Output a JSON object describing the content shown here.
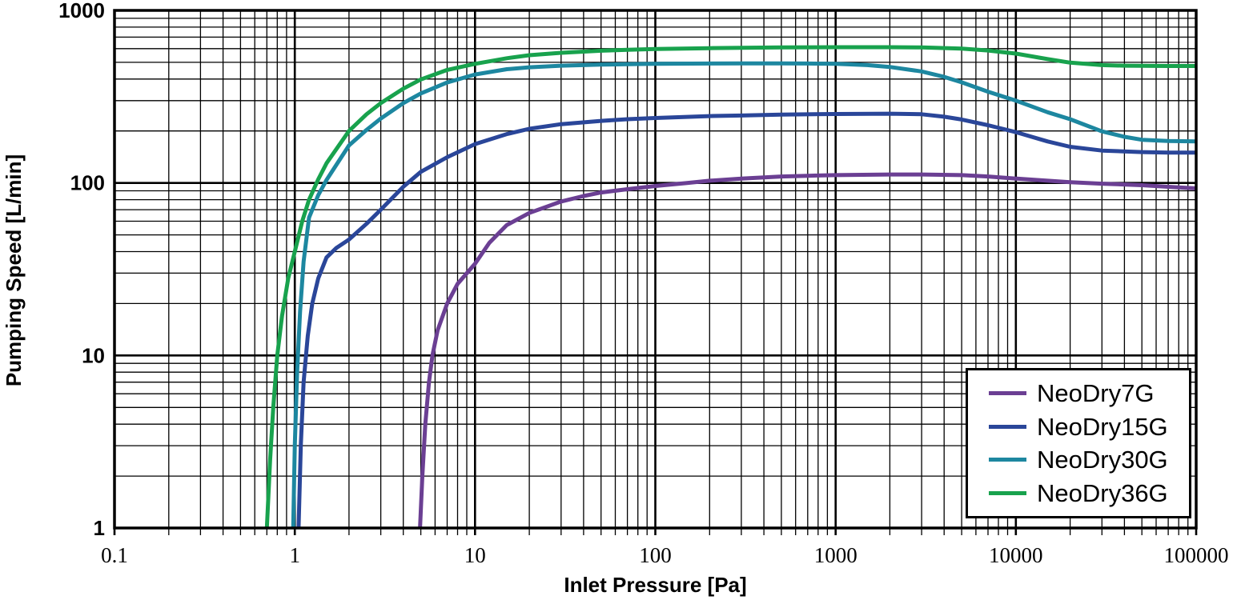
{
  "chart_data": {
    "type": "line",
    "title": "",
    "xlabel": "Inlet Pressure [Pa]",
    "ylabel": "Pumping Speed [L/min]",
    "x_scale": "log",
    "y_scale": "log",
    "xlim": [
      0.1,
      100000
    ],
    "ylim": [
      1,
      1000
    ],
    "x_ticks": [
      0.1,
      1,
      10,
      100,
      1000,
      10000,
      100000
    ],
    "x_tick_labels": [
      "0.1",
      "1",
      "10",
      "100",
      "1000",
      "10000",
      "100000"
    ],
    "y_ticks": [
      1,
      10,
      100,
      1000
    ],
    "y_tick_labels": [
      "1",
      "10",
      "100",
      "1000"
    ],
    "grid": "major+minor log-log, black lines on white",
    "legend_position": "lower-right",
    "axis_color": "#000000",
    "background_color": "#ffffff",
    "series": [
      {
        "name": "NeoDry7G",
        "color": "#6b3f93",
        "points": [
          [
            4.95,
            1
          ],
          [
            5.1,
            2
          ],
          [
            5.3,
            4
          ],
          [
            5.55,
            7
          ],
          [
            5.8,
            10
          ],
          [
            6.2,
            14
          ],
          [
            7,
            20
          ],
          [
            8,
            26
          ],
          [
            10,
            34
          ],
          [
            12,
            45
          ],
          [
            15,
            57
          ],
          [
            20,
            67
          ],
          [
            30,
            78
          ],
          [
            40,
            84
          ],
          [
            50,
            88
          ],
          [
            70,
            92
          ],
          [
            100,
            96
          ],
          [
            150,
            100
          ],
          [
            200,
            103
          ],
          [
            300,
            106
          ],
          [
            500,
            109
          ],
          [
            700,
            110
          ],
          [
            1000,
            111
          ],
          [
            2000,
            112
          ],
          [
            3000,
            112
          ],
          [
            5000,
            111
          ],
          [
            7000,
            109
          ],
          [
            10000,
            106
          ],
          [
            15000,
            103
          ],
          [
            20000,
            101
          ],
          [
            30000,
            99
          ],
          [
            50000,
            97
          ],
          [
            70000,
            95
          ],
          [
            100000,
            93
          ]
        ]
      },
      {
        "name": "NeoDry15G",
        "color": "#2a4699",
        "points": [
          [
            1.05,
            1
          ],
          [
            1.08,
            3
          ],
          [
            1.12,
            7
          ],
          [
            1.18,
            13
          ],
          [
            1.25,
            20
          ],
          [
            1.35,
            28
          ],
          [
            1.5,
            37
          ],
          [
            1.7,
            42
          ],
          [
            2,
            47
          ],
          [
            2.5,
            58
          ],
          [
            3,
            70
          ],
          [
            4,
            95
          ],
          [
            5,
            116
          ],
          [
            7,
            141
          ],
          [
            10,
            168
          ],
          [
            15,
            192
          ],
          [
            20,
            206
          ],
          [
            30,
            219
          ],
          [
            50,
            229
          ],
          [
            70,
            234
          ],
          [
            100,
            238
          ],
          [
            200,
            244
          ],
          [
            300,
            246
          ],
          [
            500,
            249
          ],
          [
            1000,
            251
          ],
          [
            2000,
            252
          ],
          [
            3000,
            250
          ],
          [
            4000,
            242
          ],
          [
            5000,
            233
          ],
          [
            7000,
            216
          ],
          [
            10000,
            197
          ],
          [
            15000,
            174
          ],
          [
            20000,
            162
          ],
          [
            30000,
            154
          ],
          [
            50000,
            151
          ],
          [
            70000,
            150
          ],
          [
            100000,
            150
          ]
        ]
      },
      {
        "name": "NeoDry30G",
        "color": "#1d87a0",
        "points": [
          [
            0.98,
            1
          ],
          [
            1.0,
            3
          ],
          [
            1.03,
            8
          ],
          [
            1.07,
            18
          ],
          [
            1.12,
            35
          ],
          [
            1.2,
            63
          ],
          [
            1.35,
            85
          ],
          [
            1.5,
            104
          ],
          [
            2,
            165
          ],
          [
            2.5,
            203
          ],
          [
            3,
            236
          ],
          [
            4,
            290
          ],
          [
            5,
            330
          ],
          [
            7,
            382
          ],
          [
            10,
            425
          ],
          [
            15,
            456
          ],
          [
            20,
            468
          ],
          [
            30,
            478
          ],
          [
            50,
            485
          ],
          [
            70,
            488
          ],
          [
            100,
            490
          ],
          [
            200,
            492
          ],
          [
            300,
            493
          ],
          [
            500,
            493
          ],
          [
            700,
            492
          ],
          [
            1000,
            490
          ],
          [
            1500,
            482
          ],
          [
            2000,
            470
          ],
          [
            3000,
            443
          ],
          [
            4000,
            412
          ],
          [
            5000,
            383
          ],
          [
            7000,
            338
          ],
          [
            10000,
            300
          ],
          [
            15000,
            257
          ],
          [
            20000,
            234
          ],
          [
            30000,
            199
          ],
          [
            40000,
            185
          ],
          [
            50000,
            178
          ],
          [
            70000,
            175
          ],
          [
            100000,
            174
          ]
        ]
      },
      {
        "name": "NeoDry36G",
        "color": "#18a24d",
        "points": [
          [
            0.7,
            1
          ],
          [
            0.73,
            2.5
          ],
          [
            0.76,
            5
          ],
          [
            0.8,
            10
          ],
          [
            0.85,
            17
          ],
          [
            0.92,
            28
          ],
          [
            1.0,
            40
          ],
          [
            1.1,
            60
          ],
          [
            1.2,
            80
          ],
          [
            1.35,
            105
          ],
          [
            1.5,
            130
          ],
          [
            2,
            200
          ],
          [
            2.5,
            250
          ],
          [
            3,
            290
          ],
          [
            4,
            352
          ],
          [
            5,
            398
          ],
          [
            7,
            452
          ],
          [
            10,
            490
          ],
          [
            15,
            528
          ],
          [
            20,
            550
          ],
          [
            30,
            568
          ],
          [
            50,
            584
          ],
          [
            70,
            591
          ],
          [
            100,
            597
          ],
          [
            200,
            604
          ],
          [
            300,
            607
          ],
          [
            500,
            610
          ],
          [
            1000,
            612
          ],
          [
            2000,
            612
          ],
          [
            3000,
            610
          ],
          [
            5000,
            600
          ],
          [
            7000,
            586
          ],
          [
            10000,
            562
          ],
          [
            15000,
            522
          ],
          [
            20000,
            498
          ],
          [
            30000,
            482
          ],
          [
            40000,
            478
          ],
          [
            50000,
            477
          ],
          [
            70000,
            476
          ],
          [
            100000,
            476
          ]
        ]
      }
    ]
  }
}
